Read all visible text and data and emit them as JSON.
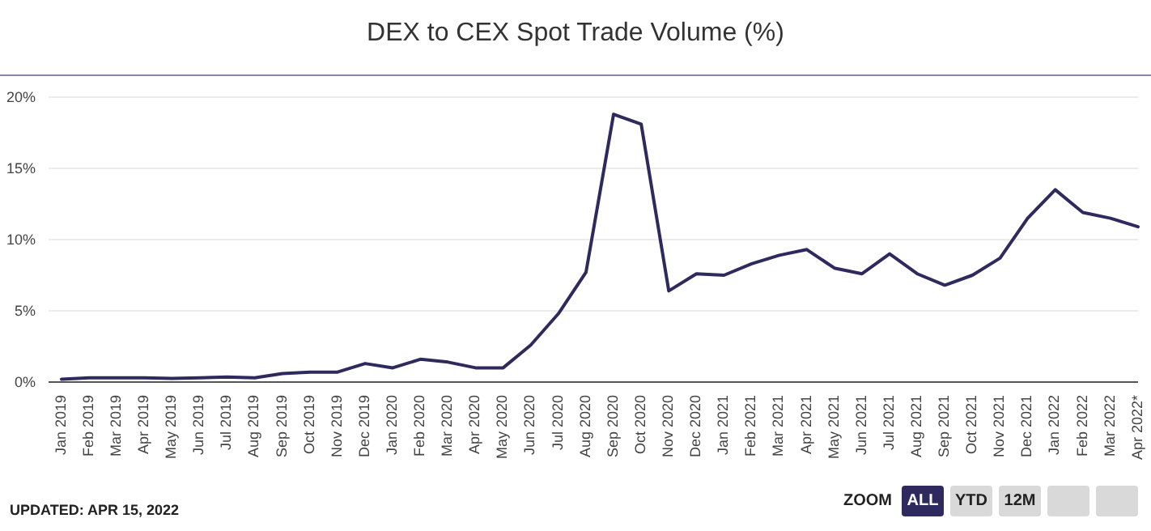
{
  "chart_data": {
    "type": "line",
    "title": "DEX to CEX Spot Trade Volume (%)",
    "categories": [
      "Jan 2019",
      "Feb 2019",
      "Mar 2019",
      "Apr 2019",
      "May 2019",
      "Jun 2019",
      "Jul 2019",
      "Aug 2019",
      "Sep 2019",
      "Oct 2019",
      "Nov 2019",
      "Dec 2019",
      "Jan 2020",
      "Feb 2020",
      "Mar 2020",
      "Apr 2020",
      "May 2020",
      "Jun 2020",
      "Jul 2020",
      "Aug 2020",
      "Sep 2020",
      "Oct 2020",
      "Nov 2020",
      "Dec 2020",
      "Jan 2021",
      "Feb 2021",
      "Mar 2021",
      "Apr 2021",
      "May 2021",
      "Jun 2021",
      "Jul 2021",
      "Aug 2021",
      "Sep 2021",
      "Oct 2021",
      "Nov 2021",
      "Dec 2021",
      "Jan 2022",
      "Feb 2022",
      "Mar 2022",
      "Apr 2022*"
    ],
    "series": [
      {
        "color": "#2e2a5e",
        "values": [
          0.2,
          0.3,
          0.3,
          0.3,
          0.25,
          0.3,
          0.35,
          0.3,
          0.6,
          0.7,
          0.7,
          1.3,
          1.0,
          1.6,
          1.4,
          1.0,
          1.0,
          2.6,
          4.8,
          7.7,
          18.8,
          18.1,
          6.4,
          7.6,
          7.5,
          8.3,
          8.9,
          9.3,
          8.0,
          7.6,
          9.0,
          7.6,
          6.8,
          7.5,
          8.7,
          11.5,
          13.5,
          11.9,
          11.5,
          10.9
        ]
      }
    ],
    "ylim": [
      0,
      20
    ],
    "yticks": [
      {
        "value": 0,
        "label": "0%"
      },
      {
        "value": 5,
        "label": "5%"
      },
      {
        "value": 10,
        "label": "10%"
      },
      {
        "value": 15,
        "label": "15%"
      },
      {
        "value": 20,
        "label": "20%"
      }
    ],
    "grid": "y",
    "legend": false,
    "marker": "none",
    "line_style": "solid",
    "annotations": [
      "UPDATED: APR 15, 2022",
      "ZOOM",
      "ALL",
      "YTD",
      "12M"
    ]
  }
}
